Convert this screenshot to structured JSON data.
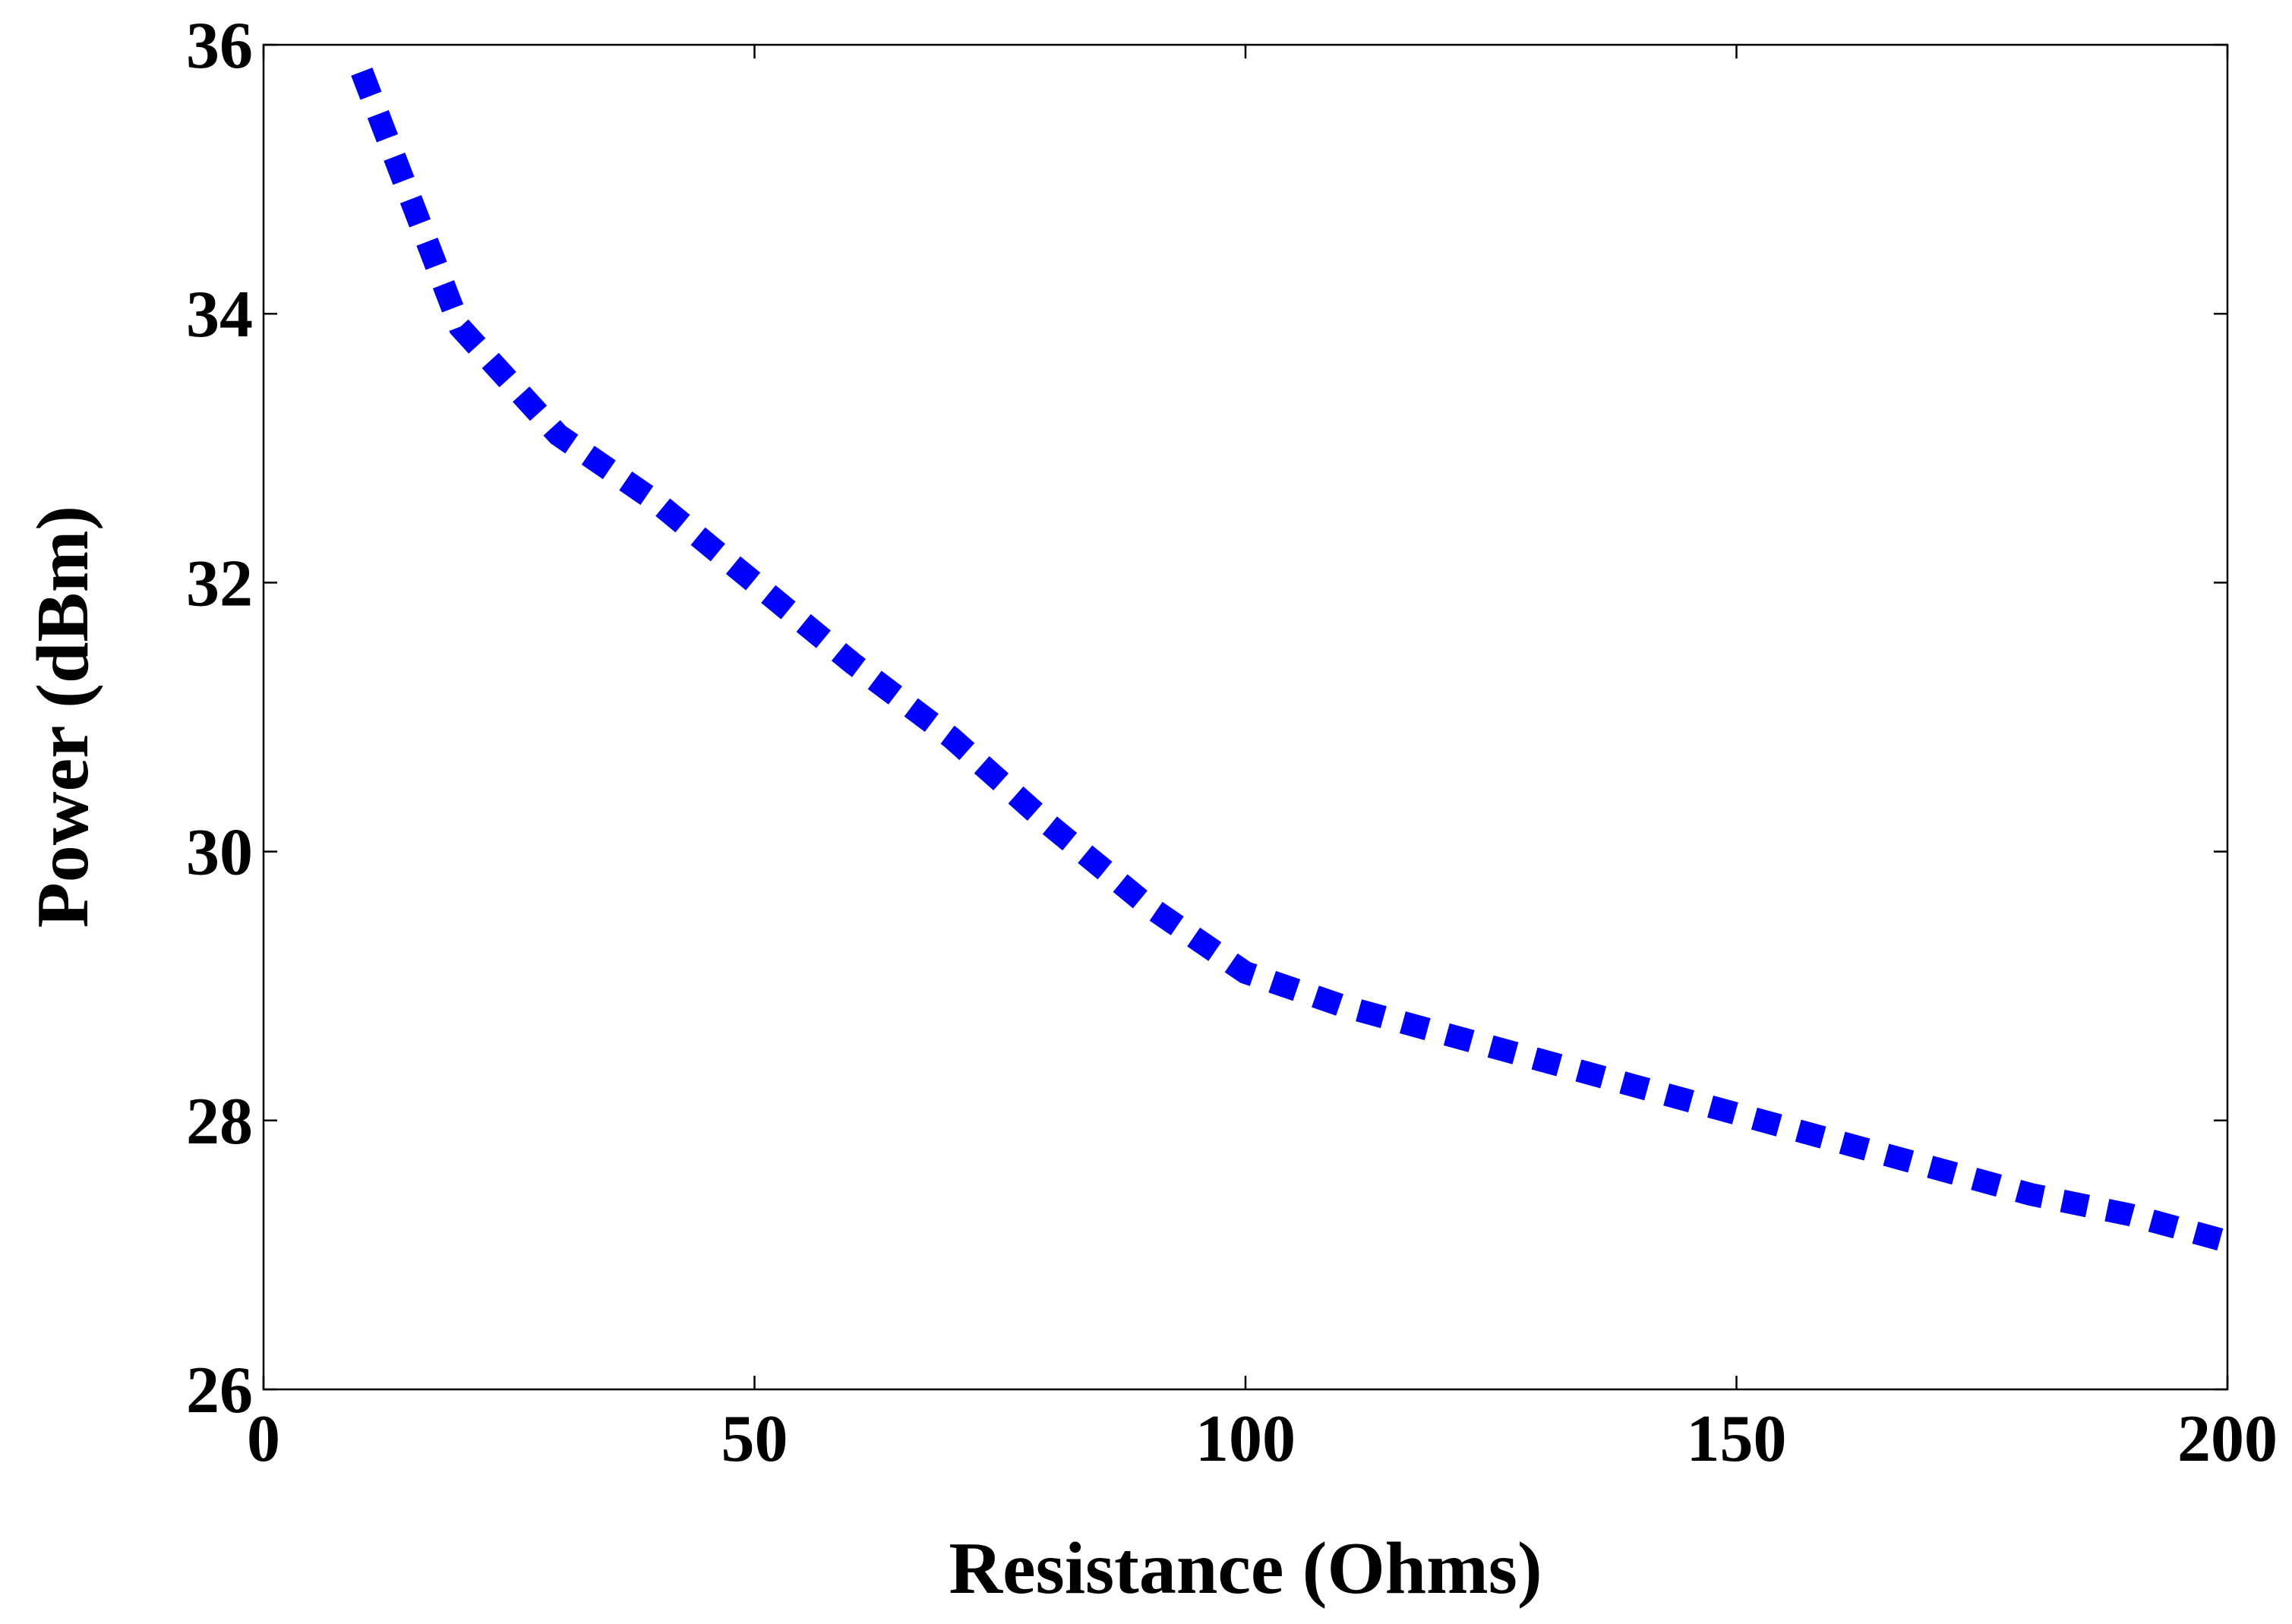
{
  "chart_data": {
    "type": "line",
    "title": "",
    "xlabel": "Resistance (Ohms)",
    "ylabel": "Power (dBm)",
    "xlim": [
      0,
      200
    ],
    "ylim": [
      26,
      36
    ],
    "xticks": [
      0,
      50,
      100,
      150,
      200
    ],
    "yticks": [
      26,
      28,
      30,
      32,
      34,
      36
    ],
    "xtick_labels": [
      "0",
      "50",
      "100",
      "150",
      "200"
    ],
    "ytick_labels": [
      "26",
      "28",
      "30",
      "32",
      "34",
      "36"
    ],
    "grid": false,
    "legend": "none",
    "series": [
      {
        "line_style": "dotted",
        "color": "#0000ff",
        "x": [
          10,
          20,
          30,
          40,
          50,
          60,
          70,
          80,
          90,
          100,
          110,
          120,
          130,
          140,
          150,
          160,
          170,
          180,
          190,
          200
        ],
        "y": [
          35.8,
          33.9,
          33.1,
          32.6,
          32.0,
          31.4,
          30.85,
          30.2,
          29.6,
          29.1,
          28.85,
          28.65,
          28.45,
          28.25,
          28.05,
          27.85,
          27.65,
          27.45,
          27.3,
          27.1
        ]
      }
    ]
  }
}
